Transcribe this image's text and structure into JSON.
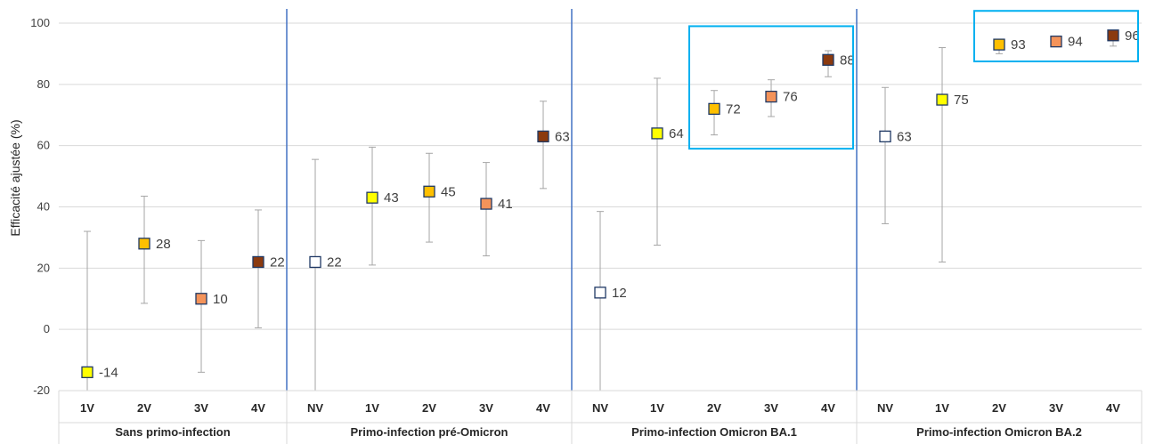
{
  "chart_data": {
    "type": "scatter",
    "ylabel": "Efficacité ajustée (%)",
    "ylim": [
      -20,
      100
    ],
    "yticks": [
      -20,
      0,
      20,
      40,
      60,
      80,
      100
    ],
    "grid": true,
    "groups": [
      {
        "name": "Sans primo-infection",
        "points": [
          {
            "cat": "1V",
            "value": -14,
            "label": "-14",
            "ci": [
              -20,
              32
            ],
            "color": "#ffff00"
          },
          {
            "cat": "2V",
            "value": 28,
            "label": "28",
            "ci": [
              8.5,
              43.5
            ],
            "color": "#ffc000"
          },
          {
            "cat": "3V",
            "value": 10,
            "label": "10",
            "ci": [
              -14,
              29
            ],
            "color": "#f4935a"
          },
          {
            "cat": "4V",
            "value": 22,
            "label": "22",
            "ci": [
              0.5,
              39
            ],
            "color": "#8b3a0f"
          }
        ]
      },
      {
        "name": "Primo-infection pré-Omicron",
        "points": [
          {
            "cat": "NV",
            "value": 22,
            "label": "22",
            "ci": [
              -20,
              55.5
            ],
            "color": "#ffffff"
          },
          {
            "cat": "1V",
            "value": 43,
            "label": "43",
            "ci": [
              21,
              59.5
            ],
            "color": "#ffff00"
          },
          {
            "cat": "2V",
            "value": 45,
            "label": "45",
            "ci": [
              28.5,
              57.5
            ],
            "color": "#ffc000"
          },
          {
            "cat": "3V",
            "value": 41,
            "label": "41",
            "ci": [
              24,
              54.5
            ],
            "color": "#f4935a"
          },
          {
            "cat": "4V",
            "value": 63,
            "label": "63",
            "ci": [
              46,
              74.5
            ],
            "color": "#8b3a0f"
          }
        ]
      },
      {
        "name": "Primo-infection Omicron BA.1",
        "points": [
          {
            "cat": "NV",
            "value": 12,
            "label": "12",
            "ci": [
              -20,
              38.5
            ],
            "color": "#ffffff"
          },
          {
            "cat": "1V",
            "value": 64,
            "label": "64",
            "ci": [
              27.5,
              82
            ],
            "color": "#ffff00"
          },
          {
            "cat": "2V",
            "value": 72,
            "label": "72",
            "ci": [
              63.5,
              78
            ],
            "color": "#ffc000"
          },
          {
            "cat": "3V",
            "value": 76,
            "label": "76",
            "ci": [
              69.5,
              81.5
            ],
            "color": "#f4935a"
          },
          {
            "cat": "4V",
            "value": 88,
            "label": "88",
            "ci": [
              82.5,
              91
            ],
            "color": "#8b3a0f"
          }
        ]
      },
      {
        "name": "Primo-infection Omicron BA.2",
        "points": [
          {
            "cat": "NV",
            "value": 63,
            "label": "63",
            "ci": [
              34.5,
              79
            ],
            "color": "#ffffff"
          },
          {
            "cat": "1V",
            "value": 75,
            "label": "75",
            "ci": [
              22,
              92
            ],
            "color": "#ffff00"
          },
          {
            "cat": "2V",
            "value": 93,
            "label": "93",
            "ci": [
              90,
              94.5
            ],
            "color": "#ffc000"
          },
          {
            "cat": "3V",
            "value": 94,
            "label": "94",
            "ci": [
              93,
              95
            ],
            "color": "#f4935a"
          },
          {
            "cat": "4V",
            "value": 96,
            "label": "96",
            "ci": [
              92.5,
              97
            ],
            "color": "#8b3a0f"
          }
        ]
      }
    ],
    "highlights": [
      {
        "group": 2,
        "from": "2V",
        "to": "4V",
        "ylim": [
          59,
          99
        ],
        "color": "#00b0f0"
      },
      {
        "group": 3,
        "from": "2V",
        "to": "4V",
        "ylim": [
          87.5,
          104
        ],
        "color": "#00b0f0"
      }
    ],
    "colors": {
      "grid": "#d9d9d9",
      "errorbar": "#a6a6a6",
      "marker_edge": "#1f3864",
      "separator": "#4472c4"
    }
  }
}
